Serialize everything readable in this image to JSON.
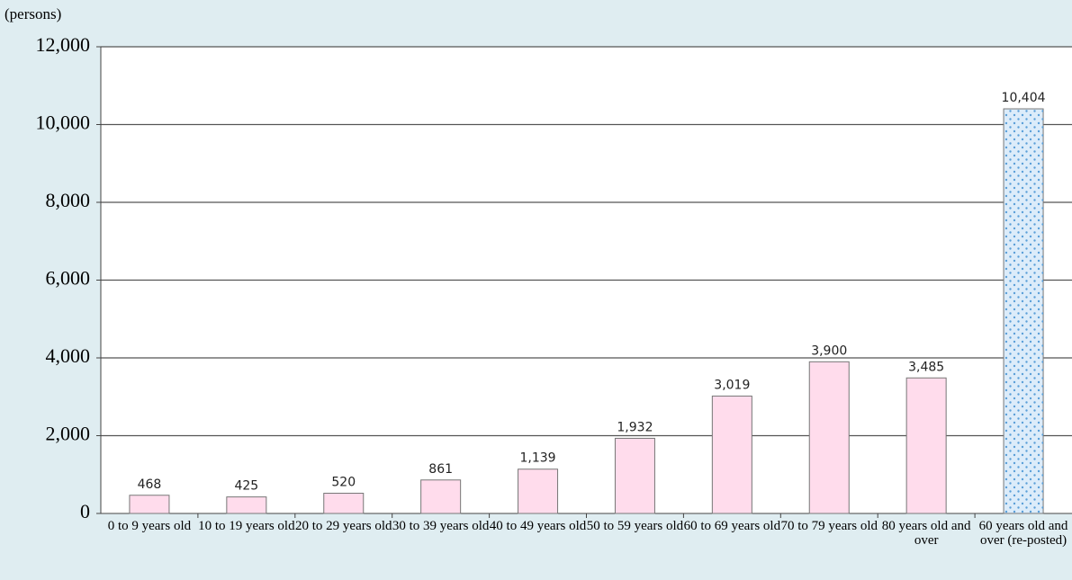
{
  "chart_data": {
    "type": "bar",
    "ylabel": "(persons)",
    "categories": [
      "0 to 9 years old",
      "10 to 19 years old",
      "20 to 29 years old",
      "30 to 39 years old",
      "40 to 49 years old",
      "50 to 59 years old",
      "60 to 69 years old",
      "70 to 79 years old",
      "80 years old and over",
      "60 years old and over (re-posted)"
    ],
    "values": [
      468,
      425,
      520,
      861,
      1139,
      1932,
      3019,
      3900,
      3485,
      10404
    ],
    "value_labels": [
      "468",
      "425",
      "520",
      "861",
      "1,139",
      "1,932",
      "3,019",
      "3,900",
      "3,485",
      "10,404"
    ],
    "colors": [
      "#ffdcec",
      "#ffdcec",
      "#ffdcec",
      "#ffdcec",
      "#ffdcec",
      "#ffdcec",
      "#ffdcec",
      "#ffdcec",
      "#ffdcec",
      "#dcecfa"
    ],
    "bar_patterns": [
      null,
      null,
      null,
      null,
      null,
      null,
      null,
      null,
      null,
      "dots"
    ],
    "ylim": [
      0,
      12000
    ],
    "yticks": [
      0,
      {
        "value": 2000,
        "label": "2,000"
      },
      {
        "value": 4000,
        "label": "4,000"
      },
      {
        "value": 6000,
        "label": "6,000"
      },
      {
        "value": 8000,
        "label": "8,000"
      },
      {
        "value": 10000,
        "label": "10,000"
      },
      {
        "value": 12000,
        "label": "12,000"
      }
    ],
    "grid": true
  }
}
